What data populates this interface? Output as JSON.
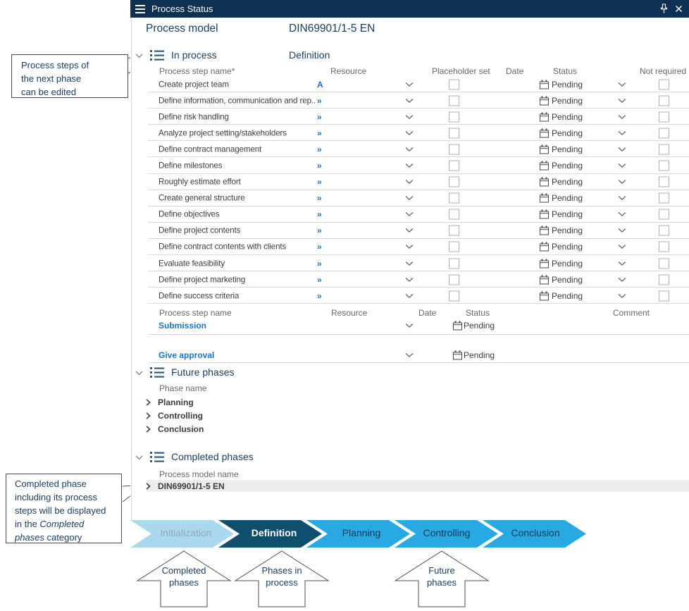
{
  "colors": {
    "titlebar_bg": "#0e3153",
    "navy": "#1a3c5e",
    "link_blue": "#1a74c7",
    "icon_blue": "#2e5c87",
    "gray_text": "#5f6a74",
    "row_text": "#3c3c3c",
    "separator": "#d9d9d9",
    "checkbox_border": "#b0b0b0",
    "row_highlight": "#ececec",
    "flow_completed_fill": "#a9d8ef",
    "flow_current_fill": "#0f4f6e",
    "flow_future_fill": "#29a9e1",
    "flow_completed_text": "#93a9ba",
    "flow_current_text": "#ffffff",
    "flow_future_text": "#0e3a57",
    "outline": "#4d4d4d"
  },
  "titlebar": {
    "title": "Process Status"
  },
  "header": {
    "label": "Process model",
    "value": "DIN69901/1-5 EN"
  },
  "in_process": {
    "label": "In process",
    "phase": "Definition",
    "columns": {
      "name": "Process step name*",
      "resource": "Resource",
      "placeholder": "Placeholder set",
      "date": "Date",
      "status": "Status",
      "not_required": "Not required"
    },
    "steps": [
      {
        "name": "Create project team",
        "resource": "A",
        "status": "Pending"
      },
      {
        "name": "Define information, communication and rep...",
        "resource": "»",
        "status": "Pending"
      },
      {
        "name": "Define risk handling",
        "resource": "»",
        "status": "Pending"
      },
      {
        "name": "Analyze project setting/stakeholders",
        "resource": "»",
        "status": "Pending"
      },
      {
        "name": "Define contract management",
        "resource": "»",
        "status": "Pending"
      },
      {
        "name": "Define milestones",
        "resource": "»",
        "status": "Pending"
      },
      {
        "name": "Roughly estimate effort",
        "resource": "»",
        "status": "Pending"
      },
      {
        "name": "Create general structure",
        "resource": "»",
        "status": "Pending"
      },
      {
        "name": "Define objectives",
        "resource": "»",
        "status": "Pending"
      },
      {
        "name": "Define project contents",
        "resource": "»",
        "status": "Pending"
      },
      {
        "name": "Define contract contents with clients",
        "resource": "»",
        "status": "Pending"
      },
      {
        "name": "Evaluate feasibility",
        "resource": "»",
        "status": "Pending"
      },
      {
        "name": "Define project marketing",
        "resource": "»",
        "status": "Pending"
      },
      {
        "name": "Define success criteria",
        "resource": "»",
        "status": "Pending"
      }
    ]
  },
  "approval": {
    "columns": {
      "name": "Process step name",
      "resource": "Resource",
      "date": "Date",
      "status": "Status",
      "comment": "Comment"
    },
    "rows": [
      {
        "name": "Submission",
        "status": "Pending"
      },
      {
        "name": "Give approval",
        "status": "Pending"
      }
    ]
  },
  "future": {
    "label": "Future phases",
    "column": "Phase name",
    "phases": [
      "Planning",
      "Controlling",
      "Conclusion"
    ]
  },
  "completed": {
    "label": "Completed phases",
    "column": "Process model name",
    "rows": [
      "DIN69901/1-5 EN"
    ]
  },
  "flow": {
    "phases": [
      {
        "label": "Initialization",
        "state": "completed"
      },
      {
        "label": "Definition",
        "state": "current"
      },
      {
        "label": "Planning",
        "state": "future"
      },
      {
        "label": "Controlling",
        "state": "future"
      },
      {
        "label": "Conclusion",
        "state": "future"
      }
    ]
  },
  "legend": {
    "arrows": [
      {
        "line1": "Completed",
        "line2": "phases"
      },
      {
        "line1": "Phases in",
        "line2": "process"
      },
      {
        "line1": "Future",
        "line2": "phases"
      }
    ]
  },
  "callouts": {
    "box1": {
      "lines": [
        [
          {
            "t": "Process steps of"
          }
        ],
        [
          {
            "t": "the next phase"
          }
        ],
        [
          {
            "t": "can be edited"
          }
        ]
      ]
    },
    "box2": {
      "lines": [
        [
          {
            "t": "Completed phase"
          }
        ],
        [
          {
            "t": "including its process"
          }
        ],
        [
          {
            "t": "steps will be displayed"
          }
        ],
        [
          {
            "t": "in the ",
            "i": 0
          },
          {
            "t": "Completed",
            "i": 1
          }
        ],
        [
          {
            "t": "phases",
            "i": 1
          },
          {
            "t": " category",
            "i": 0
          }
        ]
      ]
    }
  }
}
